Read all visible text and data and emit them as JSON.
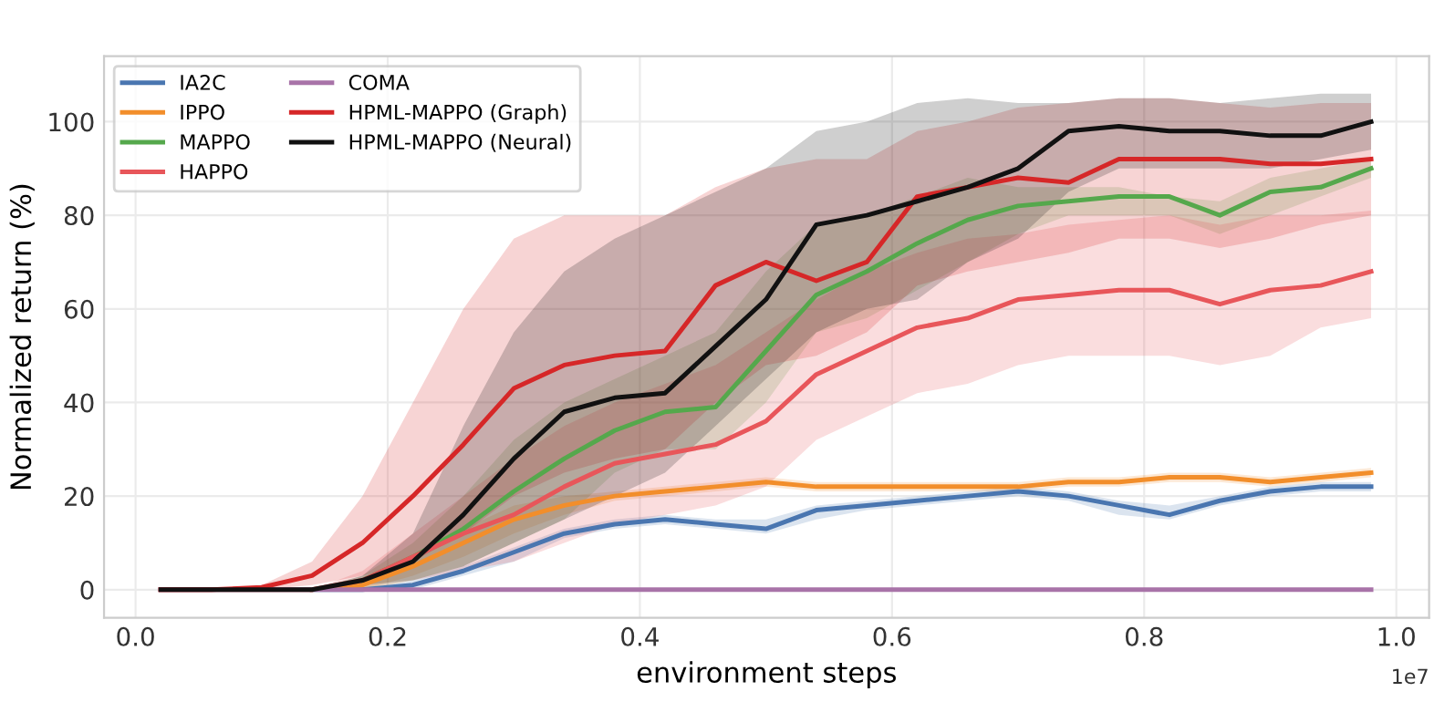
{
  "chart_data": {
    "type": "line",
    "xlabel": "environment steps",
    "ylabel": "Normalized return (%)",
    "annotations": [
      "1e7"
    ],
    "x": [
      0.02,
      0.06,
      0.1,
      0.14,
      0.18,
      0.22,
      0.26,
      0.3,
      0.34,
      0.38,
      0.42,
      0.46,
      0.5,
      0.54,
      0.58,
      0.62,
      0.66,
      0.7,
      0.74,
      0.78,
      0.82,
      0.86,
      0.9,
      0.94,
      0.98
    ],
    "xlim": [
      -0.025,
      1.026
    ],
    "xticks": [
      {
        "value": 0,
        "label": "0.0"
      },
      0.2,
      0.4,
      0.6,
      0.8,
      {
        "value": 1,
        "label": "1.0"
      }
    ],
    "ylim": [
      -6,
      114
    ],
    "yticks": [
      0,
      20,
      40,
      60,
      80,
      100
    ],
    "grid": true,
    "legend": "top left",
    "line_style": "solid",
    "marker": "none",
    "series": [
      {
        "name": "IA2C",
        "color": "#4a76b0",
        "values": [
          null,
          null,
          null,
          0,
          0,
          1,
          4,
          8,
          12,
          14,
          15,
          14,
          13,
          17,
          18,
          19,
          20,
          21,
          20,
          18,
          16,
          19,
          21,
          22,
          22
        ],
        "lower": [
          0,
          0,
          0,
          0,
          0,
          0,
          3,
          6,
          11,
          13,
          14,
          13,
          12,
          15,
          17,
          18,
          19,
          20,
          19,
          16,
          15,
          18,
          20,
          21,
          21
        ],
        "upper": [
          0,
          0,
          0,
          0,
          0,
          2,
          5,
          9,
          13,
          15,
          16,
          15,
          15,
          18,
          19,
          20,
          21,
          22,
          21,
          19,
          18,
          20,
          22,
          23,
          23
        ]
      },
      {
        "name": "IPPO",
        "color": "#f28e2b",
        "values": [
          null,
          null,
          null,
          0,
          1,
          5,
          10,
          15,
          18,
          20,
          21,
          22,
          23,
          22,
          22,
          22,
          22,
          22,
          23,
          23,
          24,
          24,
          23,
          24,
          25
        ],
        "lower": [
          0,
          0,
          0,
          0,
          0,
          3,
          7,
          12,
          16,
          19,
          20,
          21,
          22,
          21,
          21,
          21,
          21,
          21,
          22,
          22,
          23,
          23,
          22,
          23,
          24
        ],
        "upper": [
          0,
          0,
          0,
          0,
          2,
          7,
          13,
          18,
          20,
          21,
          22,
          23,
          24,
          23,
          23,
          23,
          23,
          23,
          24,
          24,
          25,
          25,
          24,
          25,
          26
        ]
      },
      {
        "name": "MAPPO",
        "color": "#55a84c",
        "values": [
          null,
          null,
          null,
          null,
          2,
          7,
          13,
          21,
          28,
          34,
          38,
          39,
          51,
          63,
          68,
          74,
          79,
          82,
          83,
          84,
          84,
          80,
          85,
          86,
          90
        ],
        "lower": [
          0,
          0,
          0,
          0,
          0,
          2,
          5,
          10,
          15,
          25,
          30,
          30,
          40,
          55,
          58,
          64,
          70,
          76,
          80,
          80,
          80,
          76,
          80,
          84,
          88
        ],
        "upper": [
          0,
          0,
          0,
          0,
          3,
          10,
          20,
          32,
          40,
          45,
          50,
          55,
          68,
          78,
          80,
          84,
          88,
          86,
          86,
          86,
          84,
          83,
          88,
          90,
          92
        ]
      },
      {
        "name": "HAPPO",
        "color": "#e8565a",
        "values": [
          0,
          0,
          0,
          0,
          2,
          7,
          12,
          16,
          22,
          27,
          29,
          31,
          36,
          46,
          51,
          56,
          58,
          62,
          63,
          64,
          64,
          61,
          64,
          65,
          68
        ],
        "lower": [
          0,
          0,
          0,
          0,
          0,
          2,
          4,
          6,
          10,
          14,
          16,
          18,
          22,
          32,
          37,
          42,
          44,
          48,
          50,
          50,
          50,
          48,
          50,
          56,
          58
        ],
        "upper": [
          0,
          0,
          0,
          0,
          4,
          12,
          20,
          28,
          35,
          40,
          44,
          48,
          55,
          62,
          68,
          72,
          75,
          76,
          78,
          79,
          80,
          78,
          80,
          80,
          81
        ]
      },
      {
        "name": "COMA",
        "color": "#a873a8",
        "values": [
          0,
          0,
          0,
          0,
          0,
          0,
          0,
          0,
          0,
          0,
          0,
          0,
          0,
          0,
          0,
          0,
          0,
          0,
          0,
          0,
          0,
          0,
          0,
          0,
          0
        ]
      },
      {
        "name": "HPML-MAPPO (Graph)",
        "color": "#d62728",
        "values": [
          0,
          0,
          0.5,
          3,
          10,
          20,
          31,
          43,
          48,
          50,
          51,
          65,
          70,
          66,
          70,
          84,
          86,
          88,
          87,
          92,
          92,
          92,
          91,
          91,
          92
        ],
        "lower": [
          0,
          0,
          0,
          1,
          3,
          6,
          12,
          20,
          25,
          28,
          30,
          40,
          48,
          50,
          55,
          65,
          68,
          70,
          72,
          75,
          75,
          73,
          75,
          78,
          80
        ],
        "upper": [
          0,
          0,
          1,
          6,
          20,
          40,
          60,
          75,
          80,
          80,
          80,
          86,
          90,
          92,
          92,
          98,
          100,
          103,
          104,
          105,
          105,
          104,
          103,
          104,
          104
        ]
      },
      {
        "name": "HPML-MAPPO (Neural)",
        "color": "#111111",
        "values": [
          0,
          0,
          0,
          0,
          2,
          6,
          16,
          28,
          38,
          41,
          42,
          52,
          62,
          78,
          80,
          83,
          86,
          90,
          98,
          99,
          98,
          98,
          97,
          97,
          100
        ],
        "lower": [
          0,
          0,
          0,
          0,
          1,
          2,
          5,
          10,
          15,
          20,
          25,
          35,
          45,
          55,
          60,
          62,
          70,
          75,
          85,
          90,
          90,
          90,
          90,
          92,
          94
        ],
        "upper": [
          0,
          0,
          0,
          0,
          3,
          12,
          35,
          55,
          68,
          75,
          80,
          85,
          90,
          98,
          100,
          104,
          105,
          104,
          104,
          105,
          105,
          104,
          105,
          106,
          106
        ]
      }
    ]
  }
}
